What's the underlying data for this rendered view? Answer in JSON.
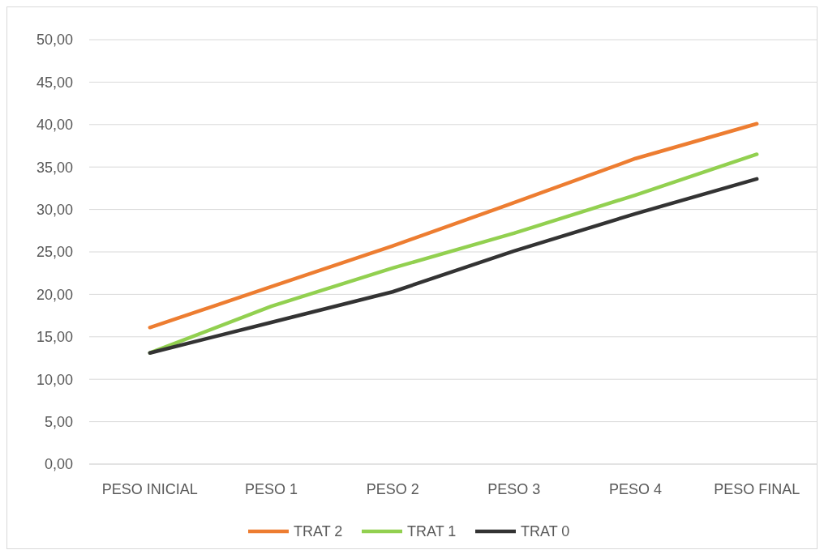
{
  "chart_data": {
    "type": "line",
    "categories": [
      "PESO INICIAL",
      "PESO 1",
      "PESO 2",
      "PESO 3",
      "PESO 4",
      "PESO FINAL"
    ],
    "series": [
      {
        "name": "TRAT 2",
        "color": "#ed7d31",
        "values": [
          16.1,
          20.9,
          25.7,
          30.8,
          36.0,
          40.1
        ]
      },
      {
        "name": "TRAT 1",
        "color": "#92d050",
        "values": [
          13.1,
          18.6,
          23.1,
          27.2,
          31.7,
          36.5
        ]
      },
      {
        "name": "TRAT 0",
        "color": "#333333",
        "values": [
          13.1,
          16.7,
          20.3,
          25.1,
          29.5,
          33.6
        ]
      }
    ],
    "ylim": [
      0,
      50
    ],
    "yticks": [
      {
        "value": 0,
        "label": "0,00"
      },
      {
        "value": 5,
        "label": "5,00"
      },
      {
        "value": 10,
        "label": "10,00"
      },
      {
        "value": 15,
        "label": "15,00"
      },
      {
        "value": 20,
        "label": "20,00"
      },
      {
        "value": 25,
        "label": "25,00"
      },
      {
        "value": 30,
        "label": "30,00"
      },
      {
        "value": 35,
        "label": "35,00"
      },
      {
        "value": 40,
        "label": "40,00"
      },
      {
        "value": 45,
        "label": "45,00"
      },
      {
        "value": 50,
        "label": "50,00"
      }
    ],
    "grid": "y",
    "legend": "bottom",
    "marker": "none",
    "line_style": "solid"
  }
}
